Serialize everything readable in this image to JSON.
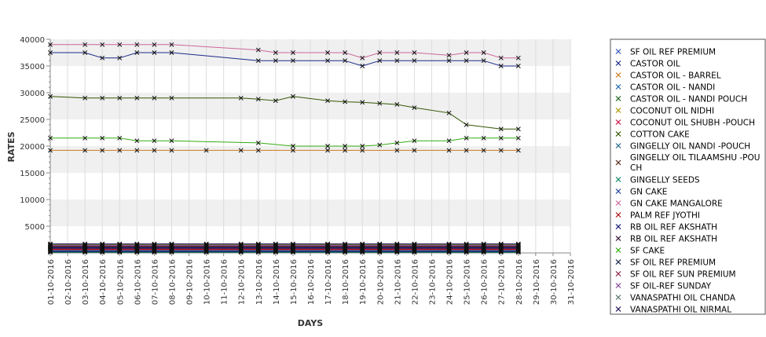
{
  "chart_data": {
    "type": "line",
    "xlabel": "DAYS",
    "ylabel": "RATES",
    "ylim": [
      0,
      40000
    ],
    "yticks": [
      5000,
      10000,
      15000,
      20000,
      25000,
      30000,
      35000,
      40000
    ],
    "categories": [
      "01-10-2016",
      "02-10-2016",
      "03-10-2016",
      "04-10-2016",
      "05-10-2016",
      "06-10-2016",
      "07-10-2016",
      "08-10-2016",
      "09-10-2016",
      "10-10-2016",
      "11-10-2016",
      "12-10-2016",
      "13-10-2016",
      "14-10-2016",
      "15-10-2016",
      "16-10-2016",
      "17-10-2016",
      "18-10-2016",
      "19-10-2016",
      "20-10-2016",
      "21-10-2016",
      "22-10-2016",
      "23-10-2016",
      "24-10-2016",
      "25-10-2016",
      "26-10-2016",
      "27-10-2016",
      "28-10-2016",
      "29-10-2016",
      "30-10-2016",
      "31-10-2016"
    ],
    "grid": true,
    "legend_position": "right",
    "series": [
      {
        "name": " SF OIL REF PREMIUM",
        "color": "#3355bb",
        "values": [
          500,
          null,
          500,
          500,
          500,
          500,
          500,
          500,
          null,
          500,
          null,
          500,
          500,
          500,
          500,
          null,
          500,
          500,
          500,
          500,
          500,
          500,
          null,
          500,
          500,
          500,
          500,
          500,
          null,
          null,
          null
        ]
      },
      {
        "name": "CASTOR OIL",
        "color": "#1a2a88",
        "values": [
          37500,
          null,
          37500,
          36500,
          36500,
          37500,
          37500,
          37500,
          null,
          null,
          null,
          null,
          36000,
          36000,
          36000,
          null,
          36000,
          36000,
          35000,
          36000,
          36000,
          36000,
          null,
          36000,
          36000,
          36000,
          35000,
          35000,
          null,
          null,
          null
        ]
      },
      {
        "name": "CASTOR OIL - BARREL",
        "color": "#cc7a22",
        "values": [
          19200,
          null,
          19200,
          19200,
          19200,
          19200,
          19200,
          19200,
          null,
          19200,
          null,
          19200,
          19200,
          null,
          19200,
          null,
          19200,
          19200,
          19200,
          null,
          19200,
          19200,
          null,
          19200,
          19200,
          19200,
          19200,
          19200,
          null,
          null,
          null
        ]
      },
      {
        "name": "CASTOR OIL - NANDI",
        "color": "#2266aa",
        "values": [
          1000,
          null,
          1000,
          1000,
          1000,
          1000,
          1000,
          1000,
          null,
          1000,
          null,
          1000,
          1000,
          1000,
          1000,
          null,
          1000,
          1000,
          1000,
          1000,
          1000,
          1000,
          null,
          1000,
          1000,
          1000,
          1000,
          1000,
          null,
          null,
          null
        ]
      },
      {
        "name": "CASTOR OIL - NANDI POUCH",
        "color": "#226622",
        "values": [
          1200,
          null,
          1200,
          1200,
          1200,
          1200,
          1200,
          1200,
          null,
          1200,
          null,
          1200,
          1200,
          1200,
          1200,
          null,
          1200,
          1200,
          1200,
          1200,
          1200,
          1200,
          null,
          1200,
          1200,
          1200,
          1200,
          1200,
          null,
          null,
          null
        ]
      },
      {
        "name": "COCONUT OIL NIDHI",
        "color": "#aa9900",
        "values": [
          1500,
          null,
          1500,
          1500,
          1500,
          1500,
          1500,
          1500,
          null,
          1500,
          null,
          1500,
          1500,
          1500,
          1500,
          null,
          1500,
          1500,
          1500,
          1500,
          1500,
          1500,
          null,
          1500,
          1500,
          1500,
          1500,
          1500,
          null,
          null,
          null
        ]
      },
      {
        "name": "COCONUT OIL SHUBH -POUCH",
        "color": "#cc1144",
        "values": [
          600,
          null,
          600,
          600,
          600,
          600,
          600,
          600,
          null,
          600,
          null,
          600,
          600,
          600,
          600,
          null,
          600,
          600,
          600,
          600,
          600,
          600,
          null,
          600,
          600,
          600,
          600,
          600,
          null,
          null,
          null
        ]
      },
      {
        "name": "COTTON CAKE",
        "color": "#335500",
        "values": [
          29300,
          null,
          29000,
          29000,
          29000,
          29000,
          29000,
          29000,
          null,
          null,
          null,
          29000,
          28800,
          28500,
          29300,
          null,
          28500,
          28300,
          28200,
          28000,
          27800,
          27200,
          null,
          26200,
          24000,
          null,
          23200,
          23200,
          null,
          null,
          null
        ]
      },
      {
        "name": "GINGELLY OIL NANDI -POUCH",
        "color": "#226688",
        "values": [
          400,
          null,
          400,
          400,
          400,
          400,
          400,
          400,
          null,
          400,
          null,
          400,
          400,
          400,
          400,
          null,
          400,
          400,
          400,
          400,
          400,
          400,
          null,
          400,
          400,
          400,
          400,
          400,
          null,
          null,
          null
        ]
      },
      {
        "name": "GINGELLY OIL TILAAMSHU -POUCH",
        "color": "#552211",
        "values": [
          800,
          null,
          800,
          800,
          800,
          800,
          800,
          800,
          null,
          800,
          null,
          800,
          800,
          800,
          800,
          null,
          800,
          800,
          800,
          800,
          800,
          800,
          null,
          800,
          800,
          800,
          800,
          800,
          null,
          null,
          null
        ]
      },
      {
        "name": "GINGELLY SEEDS",
        "color": "#118866",
        "values": [
          100,
          null,
          100,
          100,
          100,
          100,
          100,
          100,
          null,
          100,
          null,
          100,
          100,
          100,
          100,
          null,
          100,
          100,
          100,
          100,
          100,
          100,
          null,
          100,
          100,
          100,
          100,
          100,
          null,
          null,
          null
        ]
      },
      {
        "name": "GN CAKE",
        "color": "#224499",
        "values": [
          300,
          null,
          300,
          300,
          300,
          300,
          300,
          300,
          null,
          300,
          null,
          300,
          300,
          300,
          300,
          null,
          300,
          300,
          300,
          300,
          300,
          300,
          null,
          300,
          300,
          300,
          300,
          300,
          null,
          null,
          null
        ]
      },
      {
        "name": "GN CAKE MANGALORE",
        "color": "#cc6699",
        "values": [
          39000,
          null,
          39000,
          39000,
          39000,
          39000,
          39000,
          39000,
          null,
          null,
          null,
          null,
          38000,
          37500,
          37500,
          null,
          37500,
          37500,
          36500,
          37500,
          37500,
          37500,
          null,
          37000,
          37500,
          37500,
          36500,
          36500,
          null,
          null,
          null
        ]
      },
      {
        "name": "PALM REF JYOTHI",
        "color": "#aa1111",
        "values": [
          700,
          null,
          700,
          700,
          700,
          700,
          700,
          700,
          null,
          700,
          null,
          700,
          700,
          700,
          700,
          null,
          700,
          700,
          700,
          700,
          700,
          700,
          null,
          700,
          700,
          700,
          700,
          700,
          null,
          null,
          null
        ]
      },
      {
        "name": "RB OIL REF  AKSHATH",
        "color": "#111177",
        "values": [
          900,
          null,
          900,
          900,
          900,
          900,
          900,
          900,
          null,
          900,
          null,
          900,
          900,
          900,
          900,
          null,
          900,
          900,
          900,
          900,
          900,
          900,
          null,
          900,
          900,
          900,
          900,
          900,
          null,
          null,
          null
        ]
      },
      {
        "name": "RB OIL REF AKSHATH",
        "color": "#331133",
        "values": [
          1100,
          null,
          1100,
          1100,
          1100,
          1100,
          1100,
          1100,
          null,
          1100,
          null,
          1100,
          1100,
          1100,
          1100,
          null,
          1100,
          1100,
          1100,
          1100,
          1100,
          1100,
          null,
          1100,
          1100,
          1100,
          1100,
          1100,
          null,
          null,
          null
        ]
      },
      {
        "name": "SF CAKE",
        "color": "#33aa11",
        "values": [
          21500,
          null,
          21500,
          21500,
          21500,
          21000,
          21000,
          21000,
          null,
          null,
          null,
          null,
          20600,
          null,
          20000,
          null,
          20000,
          20000,
          20000,
          20200,
          20600,
          21000,
          null,
          21000,
          21500,
          21500,
          21500,
          21500,
          null,
          null,
          null
        ]
      },
      {
        "name": "SF OIL REF PREMIUM",
        "color": "#112244",
        "values": [
          200,
          null,
          200,
          200,
          200,
          200,
          200,
          200,
          null,
          200,
          null,
          200,
          200,
          200,
          200,
          null,
          200,
          200,
          200,
          200,
          200,
          200,
          null,
          200,
          200,
          200,
          200,
          200,
          null,
          null,
          null
        ]
      },
      {
        "name": "SF OIL REF SUN PREMIUM",
        "color": "#882244",
        "values": [
          1300,
          null,
          1300,
          1300,
          1300,
          1300,
          1300,
          1300,
          null,
          1300,
          null,
          1300,
          1300,
          1300,
          1300,
          null,
          1300,
          1300,
          1300,
          1300,
          1300,
          1300,
          null,
          1300,
          1300,
          1300,
          1300,
          1300,
          null,
          null,
          null
        ]
      },
      {
        "name": "SF OIL-REF SUNDAY",
        "color": "#884499",
        "values": [
          1400,
          null,
          1400,
          1400,
          1400,
          1400,
          1400,
          1400,
          null,
          1400,
          null,
          1400,
          1400,
          1400,
          1400,
          null,
          1400,
          1400,
          1400,
          1400,
          1400,
          1400,
          null,
          1400,
          1400,
          1400,
          1400,
          1400,
          null,
          null,
          null
        ]
      },
      {
        "name": "VANASPATHI OIL CHANDA",
        "color": "#557766",
        "values": [
          1600,
          null,
          1600,
          1600,
          1600,
          1600,
          1600,
          1600,
          null,
          1600,
          null,
          1600,
          1600,
          1600,
          1600,
          null,
          1600,
          1600,
          1600,
          1600,
          1600,
          1600,
          null,
          1600,
          1600,
          1600,
          1600,
          1600,
          null,
          null,
          null
        ]
      },
      {
        "name": "VANASPATHI OIL NIRMAL",
        "color": "#221155",
        "values": [
          1700,
          null,
          1700,
          1700,
          1700,
          1700,
          1700,
          1700,
          null,
          1700,
          null,
          1700,
          1700,
          1700,
          1700,
          null,
          1700,
          1700,
          1700,
          1700,
          1700,
          1700,
          null,
          1700,
          1700,
          1700,
          1700,
          1700,
          null,
          null,
          null
        ]
      }
    ]
  }
}
